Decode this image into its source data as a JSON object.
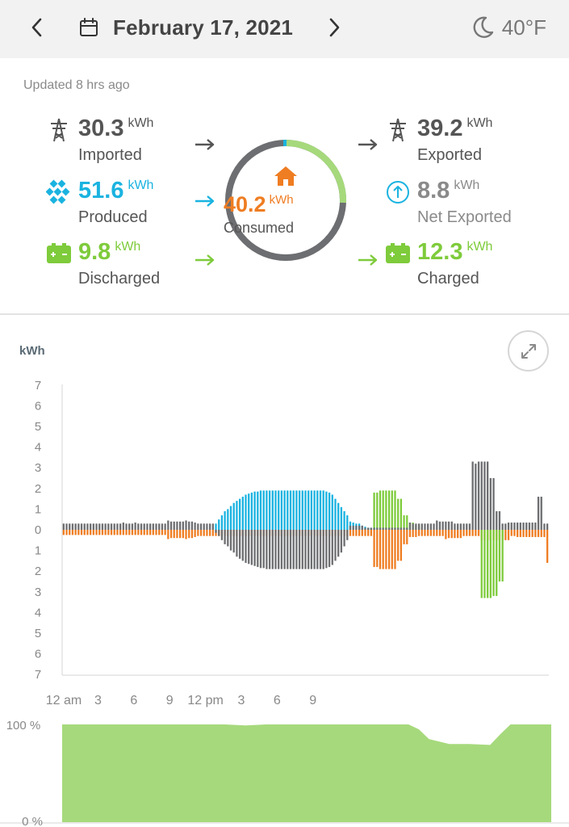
{
  "header": {
    "date": "February 17, 2021",
    "temperature": "40°F",
    "prev_icon": "chevron-left-icon",
    "next_icon": "chevron-right-icon",
    "calendar_icon": "calendar-icon",
    "weather_icon": "moon-icon"
  },
  "updated": "Updated 8 hrs ago",
  "flows": {
    "imported": {
      "value": "30.3",
      "unit": "kWh",
      "label": "Imported",
      "icon": "power-tower-icon"
    },
    "produced": {
      "value": "51.6",
      "unit": "kWh",
      "label": "Produced",
      "icon": "solar-panel-icon"
    },
    "discharged": {
      "value": "9.8",
      "unit": "kWh",
      "label": "Discharged",
      "icon": "battery-icon"
    },
    "exported": {
      "value": "39.2",
      "unit": "kWh",
      "label": "Exported",
      "icon": "power-tower-icon"
    },
    "net_exported": {
      "value": "8.8",
      "unit": "kWh",
      "label": "Net Exported",
      "icon": "arrow-up-circle-icon"
    },
    "charged": {
      "value": "12.3",
      "unit": "kWh",
      "label": "Charged",
      "icon": "battery-icon"
    },
    "consumed": {
      "value": "40.2",
      "unit": "kWh",
      "label": "Consumed",
      "icon": "home-icon"
    }
  },
  "colors": {
    "grid": "#6d6e71",
    "solar": "#1ab3e0",
    "battery": "#7ecb3b",
    "home": "#ef7d22",
    "soc_fill": "#a6d97c",
    "text_dark": "#444444",
    "text_muted": "#8a8a8a"
  },
  "chart_data": [
    {
      "type": "bar",
      "title": "",
      "ylabel": "kWh",
      "ylim": [
        -7,
        7
      ],
      "y_ticks": [
        "7",
        "6",
        "5",
        "4",
        "3",
        "2",
        "1",
        "0",
        "1",
        "2",
        "3",
        "4",
        "5",
        "6",
        "7"
      ],
      "x_ticks": [
        "12 am",
        "3",
        "6",
        "9",
        "12 pm",
        "3",
        "6",
        "9"
      ],
      "interval_minutes": 15,
      "series": [
        {
          "key": "grid",
          "color": "#6d6e71",
          "values": [
            0.3,
            0.3,
            0.3,
            0.3,
            0.3,
            0.3,
            0.3,
            0.3,
            0.3,
            0.3,
            0.3,
            0.3,
            0.3,
            0.3,
            0.3,
            0.3,
            0.3,
            0.3,
            0.3,
            0.3,
            0.35,
            0.3,
            0.3,
            0.3,
            0.35,
            0.3,
            0.3,
            0.3,
            0.3,
            0.3,
            0.3,
            0.3,
            0.3,
            0.3,
            0.3,
            0.45,
            0.4,
            0.4,
            0.4,
            0.4,
            0.4,
            0.45,
            0.4,
            0.4,
            0.35,
            0.3,
            0.3,
            0.3,
            0.3,
            0.3,
            0.3,
            -0.15,
            -0.3,
            -0.5,
            -0.7,
            -0.8,
            -1.0,
            -1.1,
            -1.3,
            -1.4,
            -1.5,
            -1.6,
            -1.65,
            -1.7,
            -1.75,
            -1.8,
            -1.85,
            -1.85,
            -1.9,
            -1.9,
            -1.9,
            -1.9,
            -1.9,
            -1.9,
            -1.9,
            -1.9,
            -1.9,
            -1.9,
            -1.9,
            -1.9,
            -1.9,
            -1.9,
            -1.9,
            -1.9,
            -1.9,
            -1.9,
            -1.9,
            -1.9,
            -1.85,
            -1.8,
            -1.7,
            -1.5,
            -1.3,
            -1.1,
            -0.8,
            -0.5,
            0.2,
            0.2,
            0.2,
            0.2,
            0.2,
            0.1,
            0.1,
            0.1,
            0.1,
            0.1,
            0.1,
            0.1,
            0.1,
            0.1,
            0.1,
            0.1,
            0.1,
            0.1,
            0.1,
            0.1,
            0.35,
            0.3,
            0.3,
            0.3,
            0.3,
            0.3,
            0.3,
            0.3,
            0.3,
            0.45,
            0.4,
            0.4,
            0.4,
            0.4,
            0.4,
            0.3,
            0.3,
            0.3,
            0.3,
            0.3,
            0.3,
            3.3,
            3.2,
            3.3,
            3.3,
            3.3,
            3.3,
            2.5,
            2.5,
            0.9,
            0.9,
            0.3,
            0.3,
            0.35,
            0.35,
            0.35,
            0.35,
            0.35,
            0.35,
            0.35,
            0.35,
            0.35,
            0.35,
            1.6,
            1.6,
            0.3,
            0.3
          ]
        },
        {
          "key": "solar",
          "color": "#1ab3e0",
          "values": [
            0,
            0,
            0,
            0,
            0,
            0,
            0,
            0,
            0,
            0,
            0,
            0,
            0,
            0,
            0,
            0,
            0,
            0,
            0,
            0,
            0,
            0,
            0,
            0,
            0,
            0,
            0,
            0,
            0,
            0,
            0,
            0,
            0,
            0,
            0,
            0,
            0,
            0,
            0,
            0,
            0,
            0,
            0,
            0,
            0,
            0,
            0,
            0,
            0,
            0,
            0,
            0.3,
            0.5,
            0.7,
            0.9,
            1.0,
            1.15,
            1.3,
            1.4,
            1.5,
            1.6,
            1.7,
            1.75,
            1.8,
            1.85,
            1.85,
            1.9,
            1.9,
            1.9,
            1.9,
            1.9,
            1.9,
            1.9,
            1.9,
            1.9,
            1.9,
            1.9,
            1.9,
            1.9,
            1.9,
            1.9,
            1.9,
            1.9,
            1.9,
            1.9,
            1.9,
            1.9,
            1.9,
            1.85,
            1.8,
            1.7,
            1.5,
            1.3,
            1.1,
            0.9,
            0.7,
            0.4,
            0.35,
            0.3,
            0.3,
            0.2,
            0.15,
            0.1,
            0.1,
            0.1,
            0,
            0,
            0,
            0,
            0,
            0,
            0,
            0,
            0,
            0,
            0,
            0,
            0,
            0,
            0,
            0,
            0,
            0,
            0,
            0,
            0,
            0,
            0,
            0,
            0,
            0,
            0,
            0,
            0,
            0,
            0,
            0,
            0,
            0,
            0,
            0,
            0,
            0,
            0,
            0,
            0,
            0,
            0,
            0,
            0,
            0,
            0,
            0,
            0,
            0,
            0,
            0,
            0,
            0,
            0,
            0,
            0,
            0,
            0,
            0,
            0
          ]
        },
        {
          "key": "battery",
          "color": "#7ecb3b",
          "values": [
            0,
            0,
            0,
            0,
            0,
            0,
            0,
            0,
            0,
            0,
            0,
            0,
            0,
            0,
            0,
            0,
            0,
            0,
            0,
            0,
            0,
            0,
            0,
            0,
            0,
            0,
            0,
            0,
            0,
            0,
            0,
            0,
            0,
            0,
            0,
            0,
            0,
            0,
            0,
            0,
            0,
            0,
            0,
            0,
            0,
            0,
            0,
            0,
            0,
            0,
            0,
            0,
            0,
            0,
            0,
            0,
            0,
            0,
            0,
            0,
            0,
            0,
            0,
            0,
            0,
            0,
            0,
            0,
            0,
            0,
            0,
            0,
            0,
            0,
            0,
            0,
            0,
            0,
            0,
            0,
            0,
            0,
            0,
            0,
            0,
            0,
            0,
            0,
            0,
            0,
            0,
            0,
            0,
            0,
            0,
            0,
            0,
            0,
            0,
            0,
            0,
            0,
            0,
            0,
            1.8,
            1.8,
            1.9,
            1.9,
            1.9,
            1.9,
            1.9,
            1.9,
            1.5,
            1.5,
            0.7,
            0.7,
            0.35,
            0.35,
            0.2,
            0.2,
            0,
            0,
            0,
            0,
            0,
            0,
            0,
            0,
            0,
            0,
            0,
            0,
            0,
            0,
            0,
            0,
            0,
            0,
            0,
            0,
            -3.3,
            -3.3,
            -3.3,
            -3.3,
            -3.2,
            -3.2,
            -2.5,
            -2.5,
            0,
            0,
            0,
            0,
            0,
            0,
            0,
            0,
            0,
            0,
            0,
            0,
            0,
            0,
            0,
            0,
            0,
            0
          ]
        },
        {
          "key": "home",
          "color": "#ef7d22",
          "values": [
            -0.25,
            -0.25,
            -0.25,
            -0.25,
            -0.25,
            -0.25,
            -0.25,
            -0.25,
            -0.25,
            -0.25,
            -0.25,
            -0.25,
            -0.25,
            -0.25,
            -0.25,
            -0.25,
            -0.25,
            -0.25,
            -0.25,
            -0.25,
            -0.25,
            -0.25,
            -0.25,
            -0.25,
            -0.25,
            -0.25,
            -0.25,
            -0.25,
            -0.25,
            -0.25,
            -0.25,
            -0.25,
            -0.25,
            -0.25,
            -0.25,
            -0.45,
            -0.4,
            -0.4,
            -0.4,
            -0.4,
            -0.4,
            -0.45,
            -0.4,
            -0.4,
            -0.35,
            -0.3,
            -0.3,
            -0.3,
            -0.3,
            -0.3,
            -0.3,
            -0.3,
            -0.3,
            -0.3,
            -0.3,
            -0.3,
            -0.3,
            -0.3,
            -0.3,
            -0.3,
            -0.3,
            -0.3,
            -0.3,
            -0.3,
            -0.3,
            -0.3,
            -0.3,
            -0.3,
            -0.3,
            -0.3,
            -0.3,
            -0.3,
            -0.3,
            -0.3,
            -0.3,
            -0.3,
            -0.3,
            -0.3,
            -0.3,
            -0.3,
            -0.3,
            -0.3,
            -0.3,
            -0.3,
            -0.3,
            -0.3,
            -0.3,
            -0.3,
            -0.3,
            -0.3,
            -0.3,
            -0.3,
            -0.3,
            -0.3,
            -0.3,
            -0.3,
            -0.3,
            -0.3,
            -0.3,
            -0.3,
            -0.3,
            -0.3,
            -0.3,
            -0.3,
            -1.8,
            -1.8,
            -1.9,
            -1.9,
            -1.9,
            -1.9,
            -1.9,
            -1.9,
            -1.5,
            -1.5,
            -0.7,
            -0.7,
            -0.35,
            -0.35,
            -0.35,
            -0.3,
            -0.3,
            -0.3,
            -0.3,
            -0.3,
            -0.3,
            -0.3,
            -0.3,
            -0.3,
            -0.45,
            -0.4,
            -0.4,
            -0.4,
            -0.4,
            -0.4,
            -0.3,
            -0.3,
            -0.3,
            -0.3,
            -0.3,
            -0.3,
            -0.5,
            -0.5,
            -0.5,
            -0.5,
            -0.5,
            -0.5,
            -0.5,
            -0.5,
            -0.5,
            -0.5,
            -0.3,
            -0.3,
            -0.35,
            -0.35,
            -0.35,
            -0.35,
            -0.35,
            -0.35,
            -0.35,
            -0.35,
            -0.35,
            -0.35,
            -1.6,
            -1.6,
            -0.3,
            -0.3
          ]
        }
      ]
    },
    {
      "type": "area",
      "title": "",
      "ylabel": "",
      "ylim": [
        0,
        100
      ],
      "y_ticks": [
        "100 %",
        "0 %"
      ],
      "series": [
        {
          "key": "battery_soc",
          "color": "#a6d97c",
          "x_hours": [
            0,
            8,
            9,
            10,
            11,
            12,
            13,
            14,
            15,
            16,
            17,
            17.5,
            18,
            19,
            20,
            21,
            21.5,
            22,
            23,
            24
          ],
          "values": [
            100,
            100,
            99,
            100,
            100,
            100,
            100,
            100,
            100,
            100,
            100,
            95,
            85,
            80,
            80,
            79,
            90,
            100,
            100,
            100
          ]
        }
      ]
    }
  ]
}
